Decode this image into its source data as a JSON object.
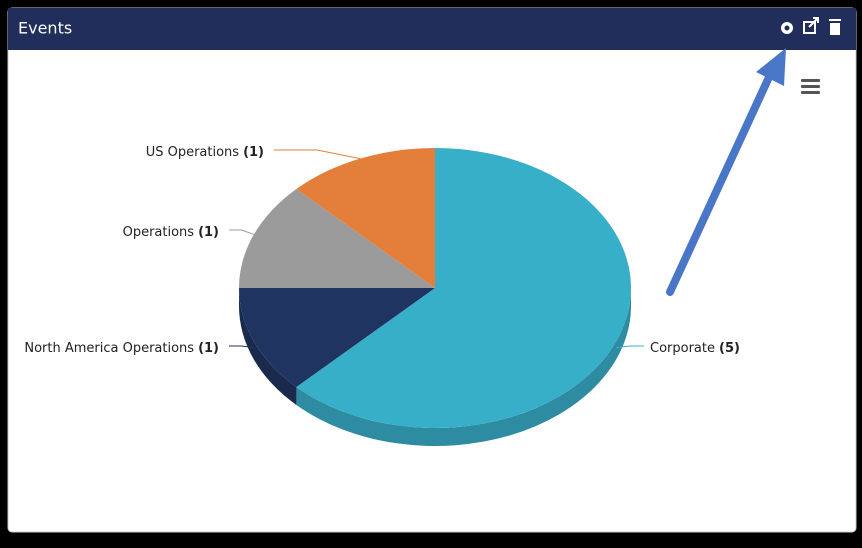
{
  "chart_data": {
    "type": "pie",
    "title": "Events",
    "categories": [
      "Corporate",
      "North America Operations",
      "Operations",
      "US Operations"
    ],
    "values": [
      5,
      1,
      1,
      1
    ],
    "value_labels": [
      "(5)",
      "(1)",
      "(1)",
      "(1)"
    ],
    "colors": [
      "#38afc9",
      "#1f3460",
      "#9b9b9b",
      "#e37f3b"
    ]
  }
}
